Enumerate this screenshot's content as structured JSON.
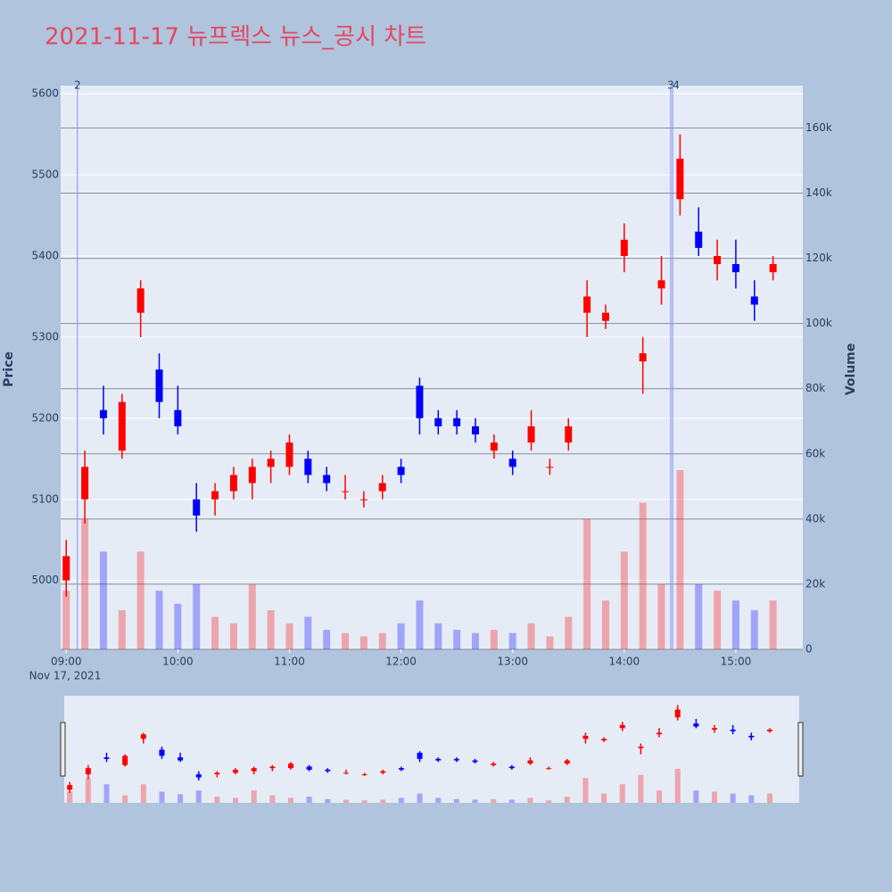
{
  "chart_data": {
    "type": "candlestick",
    "title": "2021-11-17 뉴프렉스 뉴스_공시 차트",
    "y_label": "Price",
    "y2_label": "Volume",
    "x_date_label": "Nov 17, 2021",
    "increasing_color": "#ff0000",
    "decreasing_color": "#0000ff",
    "grid": true,
    "x": [
      "2021-11-17 09:00",
      "2021-11-17 09:10",
      "2021-11-17 09:20",
      "2021-11-17 09:30",
      "2021-11-17 09:40",
      "2021-11-17 09:50",
      "2021-11-17 10:00",
      "2021-11-17 10:10",
      "2021-11-17 10:20",
      "2021-11-17 10:30",
      "2021-11-17 10:40",
      "2021-11-17 10:50",
      "2021-11-17 11:00",
      "2021-11-17 11:10",
      "2021-11-17 11:20",
      "2021-11-17 11:30",
      "2021-11-17 11:40",
      "2021-11-17 11:50",
      "2021-11-17 12:00",
      "2021-11-17 12:10",
      "2021-11-17 12:20",
      "2021-11-17 12:30",
      "2021-11-17 12:40",
      "2021-11-17 12:50",
      "2021-11-17 13:00",
      "2021-11-17 13:10",
      "2021-11-17 13:20",
      "2021-11-17 13:30",
      "2021-11-17 13:40",
      "2021-11-17 13:50",
      "2021-11-17 14:00",
      "2021-11-17 14:10",
      "2021-11-17 14:20",
      "2021-11-17 14:30",
      "2021-11-17 14:40",
      "2021-11-17 14:50",
      "2021-11-17 15:00",
      "2021-11-17 15:10",
      "2021-11-17 15:20"
    ],
    "open": [
      5000,
      5100,
      5210,
      5160,
      5330,
      5260,
      5210,
      5100,
      5100,
      5110,
      5120,
      5140,
      5140,
      5150,
      5130,
      5110,
      5100,
      5110,
      5140,
      5240,
      5200,
      5200,
      5190,
      5160,
      5150,
      5170,
      5140,
      5170,
      5330,
      5320,
      5400,
      5270,
      5360,
      5470,
      5430,
      5390,
      5390,
      5350,
      5380
    ],
    "high": [
      5050,
      5160,
      5240,
      5230,
      5370,
      5280,
      5240,
      5120,
      5120,
      5140,
      5150,
      5160,
      5180,
      5160,
      5140,
      5130,
      5110,
      5130,
      5150,
      5250,
      5210,
      5210,
      5200,
      5180,
      5160,
      5210,
      5150,
      5200,
      5370,
      5340,
      5440,
      5300,
      5400,
      5550,
      5460,
      5420,
      5420,
      5370,
      5400
    ],
    "low": [
      4980,
      5070,
      5180,
      5150,
      5300,
      5200,
      5180,
      5060,
      5080,
      5100,
      5100,
      5120,
      5130,
      5120,
      5110,
      5100,
      5090,
      5100,
      5120,
      5180,
      5180,
      5180,
      5170,
      5150,
      5130,
      5160,
      5130,
      5160,
      5300,
      5310,
      5380,
      5230,
      5340,
      5450,
      5400,
      5370,
      5360,
      5320,
      5370
    ],
    "close": [
      5030,
      5140,
      5200,
      5220,
      5360,
      5220,
      5190,
      5080,
      5110,
      5130,
      5140,
      5150,
      5170,
      5130,
      5120,
      5110,
      5100,
      5120,
      5130,
      5200,
      5190,
      5190,
      5180,
      5170,
      5140,
      5190,
      5140,
      5190,
      5350,
      5330,
      5420,
      5280,
      5370,
      5520,
      5410,
      5400,
      5380,
      5340,
      5390
    ],
    "volume": [
      18000,
      40000,
      30000,
      12000,
      30000,
      18000,
      14000,
      20000,
      10000,
      8000,
      20000,
      12000,
      8000,
      10000,
      6000,
      5000,
      4000,
      5000,
      8000,
      15000,
      8000,
      6000,
      5000,
      6000,
      5000,
      8000,
      4000,
      10000,
      40000,
      15000,
      30000,
      45000,
      20000,
      55000,
      20000,
      18000,
      15000,
      12000,
      15000
    ],
    "annotations": [
      {
        "x": "2021-11-17 09:06",
        "label": "2"
      },
      {
        "x": "2021-11-17 14:25",
        "label": "3"
      },
      {
        "x": "2021-11-17 14:26",
        "label": "4"
      }
    ],
    "xlim": [
      "2021-11-17 08:57",
      "2021-11-17 15:36"
    ],
    "xticks": [
      {
        "value": "2021-11-17 09:00",
        "label": "09:00"
      },
      {
        "value": "2021-11-17 10:00",
        "label": "10:00"
      },
      {
        "value": "2021-11-17 11:00",
        "label": "11:00"
      },
      {
        "value": "2021-11-17 12:00",
        "label": "12:00"
      },
      {
        "value": "2021-11-17 13:00",
        "label": "13:00"
      },
      {
        "value": "2021-11-17 14:00",
        "label": "14:00"
      },
      {
        "value": "2021-11-17 15:00",
        "label": "15:00"
      }
    ],
    "ylim": [
      4915,
      5610
    ],
    "yticks": [
      5000,
      5100,
      5200,
      5300,
      5400,
      5500,
      5600
    ],
    "y2lim": [
      0,
      173000
    ],
    "y2ticks": [
      0,
      {
        "value": 20000,
        "label": "20k"
      },
      {
        "value": 40000,
        "label": "40k"
      },
      {
        "value": 60000,
        "label": "60k"
      },
      {
        "value": 80000,
        "label": "80k"
      },
      {
        "value": 100000,
        "label": "100k"
      },
      {
        "value": 120000,
        "label": "120k"
      },
      {
        "value": 140000,
        "label": "140k"
      },
      {
        "value": 160000,
        "label": "160k"
      }
    ]
  }
}
